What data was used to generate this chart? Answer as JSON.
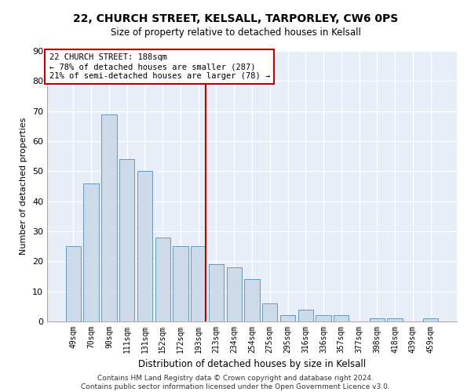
{
  "title1": "22, CHURCH STREET, KELSALL, TARPORLEY, CW6 0PS",
  "title2": "Size of property relative to detached houses in Kelsall",
  "xlabel": "Distribution of detached houses by size in Kelsall",
  "ylabel": "Number of detached properties",
  "categories": [
    "49sqm",
    "70sqm",
    "90sqm",
    "111sqm",
    "131sqm",
    "152sqm",
    "172sqm",
    "193sqm",
    "213sqm",
    "234sqm",
    "254sqm",
    "275sqm",
    "295sqm",
    "316sqm",
    "336sqm",
    "357sqm",
    "377sqm",
    "398sqm",
    "418sqm",
    "439sqm",
    "459sqm"
  ],
  "values": [
    25,
    46,
    69,
    54,
    50,
    28,
    25,
    25,
    19,
    18,
    14,
    6,
    2,
    4,
    2,
    2,
    0,
    1,
    1,
    0,
    1
  ],
  "bar_color": "#ccdaea",
  "bar_edge_color": "#6699bb",
  "vline_x_index": 7,
  "vline_color": "#bb0000",
  "annotation_text": "22 CHURCH STREET: 188sqm\n← 78% of detached houses are smaller (287)\n21% of semi-detached houses are larger (78) →",
  "annotation_box_color": "#ffffff",
  "annotation_box_edge": "#bb0000",
  "ylim": [
    0,
    90
  ],
  "yticks": [
    0,
    10,
    20,
    30,
    40,
    50,
    60,
    70,
    80,
    90
  ],
  "footer": "Contains HM Land Registry data © Crown copyright and database right 2024.\nContains public sector information licensed under the Open Government Licence v3.0.",
  "plot_bg_color": "#e8eef8"
}
